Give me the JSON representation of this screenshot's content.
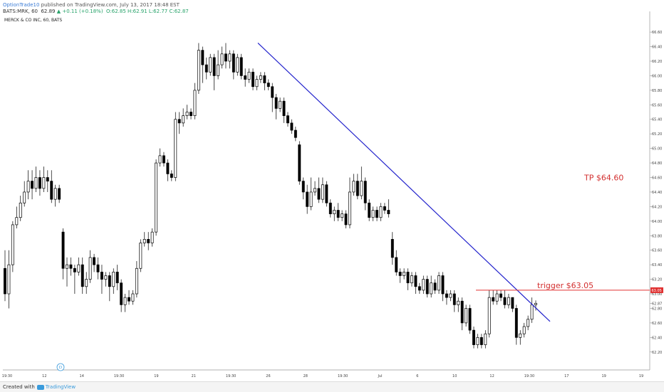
{
  "header": {
    "user": "OptionTrade10",
    "publish_text": " published on TradingView.com, July 13, 2017 18:48 EST",
    "symbol": "BATS:MRK, 60",
    "price": "62.89",
    "change": "▲ +0.11 (+0.18%)",
    "ohlc": "O:62.85 H:62.91 L:62.77 C:62.87"
  },
  "footer": {
    "created_with": "Created with",
    "brand": "TradingView"
  },
  "colors": {
    "trendline": "#2222cc",
    "trigger": "#e03030",
    "annotation": "#d32f2f",
    "candle": "#000000"
  },
  "chart_data": {
    "type": "candlestick",
    "title": "MERCK & CO INC, 60, BATS",
    "ylim": [
      62.1,
      66.65
    ],
    "y_ticks": [
      "66.60",
      "66.40",
      "66.20",
      "66.00",
      "65.80",
      "65.60",
      "65.40",
      "65.20",
      "65.00",
      "64.80",
      "64.60",
      "64.40",
      "64.20",
      "64.00",
      "63.80",
      "63.60",
      "63.40",
      "63.20",
      "63.00",
      "62.87",
      "62.80",
      "62.60",
      "62.40",
      "62.20"
    ],
    "x_ticks": [
      "19:30",
      "12",
      "14",
      "19:30",
      "19",
      "21",
      "19:30",
      "26",
      "28",
      "19:30",
      "Jul",
      "6",
      "10",
      "12",
      "19:30",
      "17",
      "19",
      "19"
    ],
    "current_price_label": "63.05",
    "marker": "D",
    "annotations": [
      {
        "text": "TP $64.60",
        "price": 64.6
      },
      {
        "text": "trigger $63.05",
        "price": 63.05
      }
    ],
    "trendline": {
      "start_price": 66.45,
      "end_price": 62.62
    },
    "candles": [
      [
        63.35,
        63.0,
        63.6,
        62.9
      ],
      [
        63.0,
        63.4,
        63.6,
        62.8
      ],
      [
        63.4,
        63.95,
        64.0,
        63.3
      ],
      [
        63.95,
        64.05,
        64.2,
        63.9
      ],
      [
        64.05,
        64.25,
        64.35,
        64.0
      ],
      [
        64.25,
        64.4,
        64.55,
        64.2
      ],
      [
        64.4,
        64.55,
        64.7,
        64.3
      ],
      [
        64.55,
        64.45,
        64.7,
        64.3
      ],
      [
        64.45,
        64.6,
        64.75,
        64.4
      ],
      [
        64.6,
        64.45,
        64.7,
        64.35
      ],
      [
        64.45,
        64.6,
        64.75,
        64.4
      ],
      [
        64.6,
        64.55,
        64.7,
        64.4
      ],
      [
        64.55,
        64.3,
        64.7,
        64.25
      ],
      [
        64.3,
        64.45,
        64.5,
        64.2
      ],
      [
        64.45,
        64.3,
        64.5,
        64.25
      ],
      [
        63.85,
        63.35,
        63.9,
        63.2
      ],
      [
        63.35,
        63.4,
        63.5,
        63.1
      ],
      [
        63.4,
        63.35,
        63.5,
        63.25
      ],
      [
        63.35,
        63.3,
        63.4,
        63.0
      ],
      [
        63.3,
        63.4,
        63.5,
        63.25
      ],
      [
        63.4,
        63.1,
        63.5,
        63.0
      ],
      [
        63.1,
        63.2,
        63.3,
        63.0
      ],
      [
        63.2,
        63.5,
        63.6,
        63.15
      ],
      [
        63.5,
        63.4,
        63.55,
        63.3
      ],
      [
        63.4,
        63.3,
        63.5,
        63.2
      ],
      [
        63.3,
        63.2,
        63.4,
        63.0
      ],
      [
        63.2,
        63.25,
        63.3,
        63.1
      ],
      [
        63.25,
        63.1,
        63.3,
        62.9
      ],
      [
        63.1,
        63.3,
        63.35,
        63.0
      ],
      [
        63.3,
        63.15,
        63.4,
        63.05
      ],
      [
        63.15,
        62.85,
        63.2,
        62.75
      ],
      [
        62.85,
        62.95,
        63.0,
        62.75
      ],
      [
        62.95,
        62.9,
        63.05,
        62.85
      ],
      [
        62.9,
        63.0,
        63.05,
        62.85
      ],
      [
        63.0,
        63.35,
        63.45,
        62.95
      ],
      [
        63.35,
        63.7,
        63.75,
        63.3
      ],
      [
        63.7,
        63.75,
        63.85,
        63.65
      ],
      [
        63.75,
        63.7,
        63.85,
        63.6
      ],
      [
        63.7,
        63.85,
        63.9,
        63.65
      ],
      [
        63.85,
        64.8,
        64.85,
        63.8
      ],
      [
        64.8,
        64.9,
        65.0,
        64.75
      ],
      [
        64.9,
        64.8,
        64.95,
        64.75
      ],
      [
        64.8,
        64.65,
        64.85,
        64.55
      ],
      [
        64.65,
        64.6,
        64.7,
        64.55
      ],
      [
        64.6,
        65.4,
        65.5,
        64.55
      ],
      [
        65.4,
        65.35,
        65.5,
        65.2
      ],
      [
        65.35,
        65.45,
        65.55,
        65.3
      ],
      [
        65.45,
        65.5,
        65.6,
        65.4
      ],
      [
        65.5,
        65.45,
        65.55,
        65.4
      ],
      [
        65.45,
        65.8,
        65.9,
        65.4
      ],
      [
        65.8,
        66.35,
        66.45,
        65.75
      ],
      [
        66.35,
        66.15,
        66.4,
        65.9
      ],
      [
        66.15,
        66.05,
        66.25,
        65.95
      ],
      [
        66.05,
        66.25,
        66.3,
        66.0
      ],
      [
        66.25,
        66.0,
        66.3,
        65.8
      ],
      [
        66.0,
        66.15,
        66.35,
        65.95
      ],
      [
        66.15,
        66.3,
        66.4,
        66.1
      ],
      [
        66.3,
        66.2,
        66.45,
        66.1
      ],
      [
        66.2,
        66.3,
        66.35,
        66.1
      ],
      [
        66.3,
        66.05,
        66.35,
        65.95
      ],
      [
        66.05,
        66.25,
        66.3,
        66.0
      ],
      [
        66.25,
        66.0,
        66.3,
        65.95
      ],
      [
        66.0,
        65.95,
        66.1,
        65.85
      ],
      [
        65.95,
        66.05,
        66.1,
        65.9
      ],
      [
        66.05,
        65.85,
        66.1,
        65.8
      ],
      [
        65.85,
        65.95,
        66.0,
        65.8
      ],
      [
        65.95,
        66.0,
        66.05,
        65.9
      ],
      [
        66.0,
        65.9,
        66.05,
        65.8
      ],
      [
        65.9,
        65.85,
        65.95,
        65.8
      ],
      [
        65.85,
        65.7,
        65.9,
        65.5
      ],
      [
        65.7,
        65.55,
        65.75,
        65.4
      ],
      [
        65.55,
        65.65,
        65.7,
        65.5
      ],
      [
        65.65,
        65.45,
        65.7,
        65.35
      ],
      [
        65.45,
        65.35,
        65.5,
        65.3
      ],
      [
        65.35,
        65.25,
        65.4,
        65.2
      ],
      [
        65.25,
        65.15,
        65.3,
        65.1
      ],
      [
        65.05,
        64.55,
        65.1,
        64.5
      ],
      [
        64.55,
        64.4,
        64.6,
        64.3
      ],
      [
        64.4,
        64.2,
        64.5,
        64.1
      ],
      [
        64.2,
        64.4,
        64.6,
        64.15
      ],
      [
        64.4,
        64.45,
        64.55,
        64.35
      ],
      [
        64.45,
        64.3,
        64.6,
        64.25
      ],
      [
        64.3,
        64.5,
        64.6,
        64.25
      ],
      [
        64.5,
        64.25,
        64.55,
        64.2
      ],
      [
        64.25,
        64.1,
        64.3,
        64.05
      ],
      [
        64.1,
        64.15,
        64.2,
        64.0
      ],
      [
        64.15,
        64.05,
        64.25,
        64.0
      ],
      [
        64.05,
        64.1,
        64.15,
        64.0
      ],
      [
        64.1,
        63.95,
        64.15,
        63.9
      ],
      [
        63.95,
        64.4,
        64.6,
        63.9
      ],
      [
        64.4,
        64.55,
        64.65,
        64.35
      ],
      [
        64.55,
        64.35,
        64.65,
        64.3
      ],
      [
        64.35,
        64.55,
        64.75,
        64.3
      ],
      [
        64.55,
        64.25,
        64.6,
        64.15
      ],
      [
        64.25,
        64.05,
        64.3,
        64.0
      ],
      [
        64.05,
        64.15,
        64.2,
        64.0
      ],
      [
        64.15,
        64.05,
        64.2,
        64.0
      ],
      [
        64.05,
        64.2,
        64.25,
        64.0
      ],
      [
        64.2,
        64.15,
        64.25,
        64.1
      ],
      [
        64.15,
        64.1,
        64.3,
        64.05
      ],
      [
        63.75,
        63.5,
        63.85,
        63.4
      ],
      [
        63.5,
        63.3,
        63.6,
        63.25
      ],
      [
        63.3,
        63.25,
        63.35,
        63.15
      ],
      [
        63.25,
        63.3,
        63.35,
        63.2
      ],
      [
        63.3,
        63.15,
        63.35,
        63.05
      ],
      [
        63.15,
        63.25,
        63.3,
        63.1
      ],
      [
        63.25,
        63.1,
        63.3,
        63.0
      ],
      [
        63.1,
        63.05,
        63.15,
        63.0
      ],
      [
        63.05,
        63.2,
        63.25,
        63.0
      ],
      [
        63.2,
        63.0,
        63.25,
        62.95
      ],
      [
        63.0,
        63.15,
        63.25,
        62.95
      ],
      [
        63.15,
        63.05,
        63.2,
        63.0
      ],
      [
        63.05,
        63.25,
        63.3,
        63.0
      ],
      [
        63.25,
        63.0,
        63.3,
        62.9
      ],
      [
        63.0,
        62.95,
        63.05,
        62.85
      ],
      [
        62.95,
        63.0,
        63.05,
        62.9
      ],
      [
        63.0,
        62.85,
        63.05,
        62.75
      ],
      [
        62.85,
        62.9,
        62.95,
        62.75
      ],
      [
        62.9,
        62.6,
        62.95,
        62.5
      ],
      [
        62.6,
        62.8,
        62.85,
        62.55
      ],
      [
        62.8,
        62.5,
        62.85,
        62.45
      ],
      [
        62.5,
        62.3,
        62.55,
        62.25
      ],
      [
        62.3,
        62.4,
        62.45,
        62.25
      ],
      [
        62.4,
        62.3,
        62.45,
        62.25
      ],
      [
        62.3,
        62.45,
        62.5,
        62.25
      ],
      [
        62.45,
        62.95,
        63.05,
        62.4
      ],
      [
        62.95,
        62.9,
        63.05,
        62.85
      ],
      [
        62.9,
        63.0,
        63.05,
        62.85
      ],
      [
        63.0,
        62.95,
        63.05,
        62.9
      ],
      [
        62.95,
        62.85,
        63.05,
        62.8
      ],
      [
        62.85,
        62.95,
        63.0,
        62.8
      ],
      [
        62.95,
        62.8,
        62.95,
        62.75
      ],
      [
        62.8,
        62.4,
        62.85,
        62.3
      ],
      [
        62.4,
        62.45,
        62.5,
        62.3
      ],
      [
        62.45,
        62.55,
        62.6,
        62.4
      ],
      [
        62.55,
        62.65,
        62.7,
        62.5
      ],
      [
        62.65,
        62.85,
        62.95,
        62.6
      ],
      [
        62.85,
        62.87,
        62.91,
        62.77
      ]
    ]
  }
}
